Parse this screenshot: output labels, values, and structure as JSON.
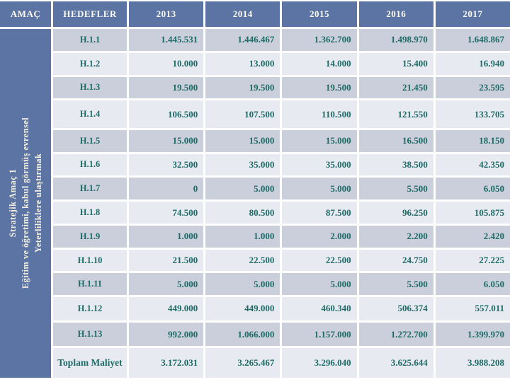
{
  "table": {
    "goal_header": "AMAÇ",
    "target_header": "HEDEFLER",
    "year_headers": [
      "2013",
      "2014",
      "2015",
      "2016",
      "2017"
    ],
    "sidebar": {
      "line1": "Stratejik Amaç 1",
      "line2": "Eğitim ve öğretimi, kabul görmüş evrensel",
      "line3": "Yeterliliklere ulaştırmak"
    },
    "rows": [
      {
        "target": "H.1.1",
        "values": [
          "1.445.531",
          "1.446.467",
          "1.362.700",
          "1.498.970",
          "1.648.867"
        ]
      },
      {
        "target": "H.1.2",
        "values": [
          "10.000",
          "13.000",
          "14.000",
          "15.400",
          "16.940"
        ]
      },
      {
        "target": "H.1.3",
        "values": [
          "19.500",
          "19.500",
          "19.500",
          "21.450",
          "23.595"
        ]
      },
      {
        "target": "H.1.4",
        "values": [
          "106.500",
          "107.500",
          "110.500",
          "121.550",
          "133.705"
        ]
      },
      {
        "target": "H.1.5",
        "values": [
          "15.000",
          "15.000",
          "15.000",
          "16.500",
          "18.150"
        ]
      },
      {
        "target": "H.1.6",
        "values": [
          "32.500",
          "35.000",
          "35.000",
          "38.500",
          "42.350"
        ]
      },
      {
        "target": "H.1.7",
        "values": [
          "0",
          "5.000",
          "5.000",
          "5.500",
          "6.050"
        ]
      },
      {
        "target": "H.1.8",
        "values": [
          "74.500",
          "80.500",
          "87.500",
          "96.250",
          "105.875"
        ]
      },
      {
        "target": "H.1.9",
        "values": [
          "1.000",
          "1.000",
          "2.000",
          "2.200",
          "2.420"
        ]
      },
      {
        "target": "H.1.10",
        "values": [
          "21.500",
          "22.500",
          "22.500",
          "24.750",
          "27.225"
        ]
      },
      {
        "target": "H.1.11",
        "values": [
          "5.000",
          "5.000",
          "5.000",
          "5.500",
          "6.050"
        ]
      },
      {
        "target": "H.1.12",
        "values": [
          "449.000",
          "449.000",
          "460.340",
          "506.374",
          "557.011"
        ]
      },
      {
        "target": "H.1.13",
        "values": [
          "992.000",
          "1.066.000",
          "1.157.000",
          "1.272.700",
          "1.399.970"
        ]
      }
    ],
    "total_row": {
      "label": "Toplam Maliyet",
      "values": [
        "3.172.031",
        "3.265.467",
        "3.296.040",
        "3.625.644",
        "3.988.208"
      ]
    }
  },
  "colors": {
    "header_bg": "#5b74a3",
    "sidebar_bg": "#5b74a3",
    "row_dark": "#cacfdb",
    "row_light": "#e8eaf1",
    "value_text": "#1d6b67",
    "header_text": "#fdfbf2"
  }
}
